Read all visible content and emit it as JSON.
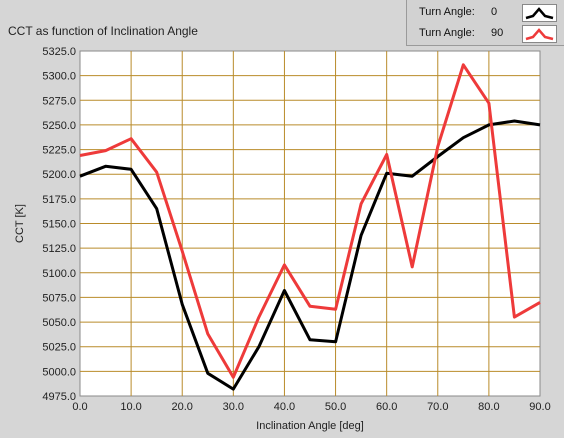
{
  "chart_data": {
    "type": "line",
    "title": "CCT as function of Inclination Angle",
    "xlabel": "Inclination Angle [deg]",
    "ylabel": "CCT [K]",
    "xlim": [
      0,
      90
    ],
    "ylim": [
      4975,
      5325
    ],
    "xticks": [
      "0.0",
      "10.0",
      "20.0",
      "30.0",
      "40.0",
      "50.0",
      "60.0",
      "70.0",
      "80.0",
      "90.0"
    ],
    "yticks": [
      "4975.0",
      "5000.0",
      "5025.0",
      "5050.0",
      "5075.0",
      "5100.0",
      "5125.0",
      "5150.0",
      "5175.0",
      "5200.0",
      "5225.0",
      "5250.0",
      "5275.0",
      "5300.0",
      "5325.0"
    ],
    "grid": true,
    "colors": {
      "plot_bg": "#ffffff",
      "grid": "#b98b2a",
      "frame_bg": "#d6d6d6"
    },
    "series": [
      {
        "name": "Turn Angle:",
        "value_label": "0",
        "color": "#000000",
        "x": [
          0,
          5,
          10,
          15,
          20,
          25,
          30,
          35,
          40,
          45,
          50,
          55,
          60,
          65,
          70,
          75,
          80,
          85,
          90
        ],
        "values": [
          5198,
          5208,
          5205,
          5165,
          5068,
          4998,
          4982,
          5025,
          5082,
          5032,
          5030,
          5138,
          5201,
          5198,
          5218,
          5237,
          5250,
          5254,
          5250
        ]
      },
      {
        "name": "Turn Angle:",
        "value_label": "90",
        "color": "#ee3a3a",
        "x": [
          0,
          5,
          10,
          15,
          20,
          25,
          30,
          35,
          40,
          45,
          50,
          55,
          60,
          65,
          70,
          75,
          80,
          85,
          90
        ],
        "values": [
          5219,
          5224,
          5236,
          5202,
          5122,
          5038,
          4994,
          5055,
          5108,
          5066,
          5063,
          5170,
          5220,
          5106,
          5228,
          5311,
          5272,
          5055,
          5070
        ]
      }
    ]
  }
}
